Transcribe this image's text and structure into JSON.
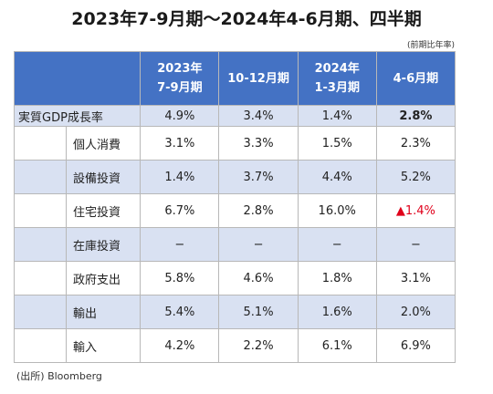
{
  "title": "2023年7-9月期〜2024年4-6月期、四半期",
  "unit_note": "(前期比年率)",
  "columns": [
    {
      "line1": "2023年",
      "line2": "7-9月期"
    },
    {
      "line1": "10-12月期",
      "line2": ""
    },
    {
      "line1": "2024年",
      "line2": "1-3月期"
    },
    {
      "line1": "4-6月期",
      "line2": ""
    }
  ],
  "rows": [
    {
      "label": "実質GDP成長率",
      "values": [
        "4.9%",
        "3.4%",
        "1.4%",
        "2.8%"
      ]
    },
    {
      "label": "個人消費",
      "values": [
        "3.1%",
        "3.3%",
        "1.5%",
        "2.3%"
      ]
    },
    {
      "label": "設備投資",
      "values": [
        "1.4%",
        "3.7%",
        "4.4%",
        "5.2%"
      ]
    },
    {
      "label": "住宅投資",
      "values": [
        "6.7%",
        "2.8%",
        "16.0%",
        "▲1.4%"
      ]
    },
    {
      "label": "在庫投資",
      "values": [
        "−",
        "−",
        "−",
        "−"
      ]
    },
    {
      "label": "政府支出",
      "values": [
        "5.8%",
        "4.6%",
        "1.8%",
        "3.1%"
      ]
    },
    {
      "label": "輸出",
      "values": [
        "5.4%",
        "5.1%",
        "1.6%",
        "2.0%"
      ]
    },
    {
      "label": "輸入",
      "values": [
        "4.2%",
        "2.2%",
        "6.1%",
        "6.9%"
      ]
    }
  ],
  "source": "(出所) Bloomberg",
  "colors": {
    "header_bg": "#4472c4",
    "band_bg": "#d9e1f2",
    "negative": "#e0001b"
  }
}
